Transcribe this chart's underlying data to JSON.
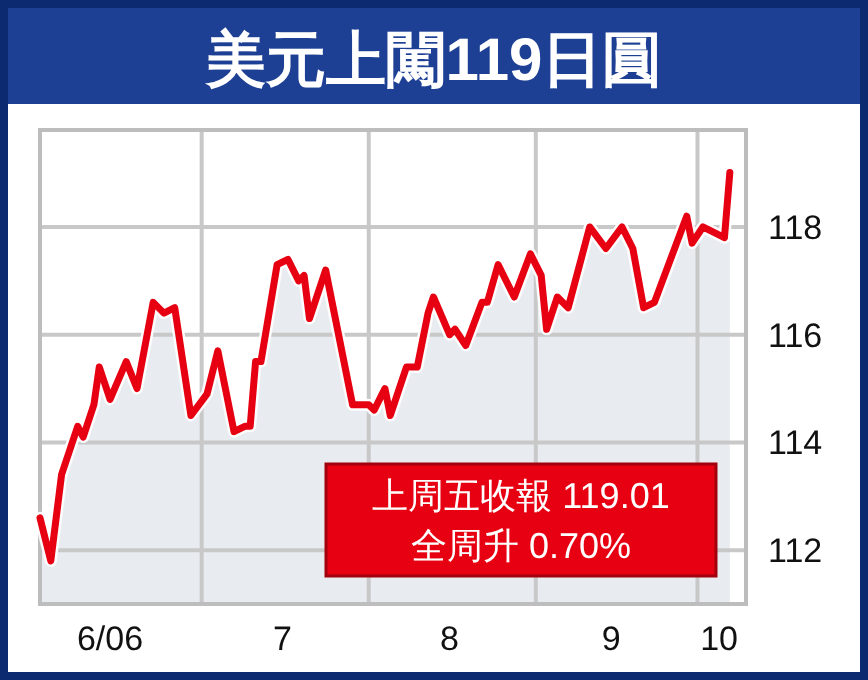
{
  "chart_data": {
    "type": "area",
    "title": "美元上闖119日圓",
    "x": [
      "2006-06-01",
      "2006-06-03",
      "2006-06-05",
      "2006-06-08",
      "2006-06-09",
      "2006-06-11",
      "2006-06-12",
      "2006-06-14",
      "2006-06-17",
      "2006-06-19",
      "2006-06-22",
      "2006-06-24",
      "2006-06-26",
      "2006-06-29",
      "2006-07-02",
      "2006-07-04",
      "2006-07-07",
      "2006-07-09",
      "2006-07-10",
      "2006-07-11",
      "2006-07-12",
      "2006-07-15",
      "2006-07-17",
      "2006-07-19",
      "2006-07-20",
      "2006-07-21",
      "2006-07-24",
      "2006-07-29",
      "2006-08-01",
      "2006-08-02",
      "2006-08-04",
      "2006-08-05",
      "2006-08-07",
      "2006-08-08",
      "2006-08-10",
      "2006-08-12",
      "2006-08-13",
      "2006-08-16",
      "2006-08-17",
      "2006-08-19",
      "2006-08-22",
      "2006-08-23",
      "2006-08-25",
      "2006-08-28",
      "2006-08-31",
      "2006-09-02",
      "2006-09-03",
      "2006-09-05",
      "2006-09-07",
      "2006-09-11",
      "2006-09-14",
      "2006-09-17",
      "2006-09-19",
      "2006-09-21",
      "2006-09-23",
      "2006-09-29",
      "2006-09-30",
      "2006-10-02",
      "2006-10-06",
      "2006-10-07"
    ],
    "values": [
      112.6,
      111.8,
      113.4,
      114.3,
      114.1,
      114.7,
      115.4,
      114.8,
      115.5,
      115.0,
      116.6,
      116.4,
      116.5,
      114.5,
      114.9,
      115.7,
      114.2,
      114.3,
      114.3,
      115.5,
      115.5,
      117.3,
      117.4,
      117.0,
      117.1,
      116.3,
      117.2,
      114.7,
      114.7,
      114.6,
      115.0,
      114.5,
      115.1,
      115.4,
      115.4,
      116.4,
      116.7,
      116.0,
      116.1,
      115.8,
      116.6,
      116.6,
      117.3,
      116.7,
      117.5,
      117.1,
      116.1,
      116.7,
      116.5,
      118.0,
      117.6,
      118.0,
      117.6,
      116.5,
      116.6,
      118.2,
      117.7,
      118.0,
      117.8,
      119.01
    ],
    "color": "#e60012",
    "xlim": [
      "2006-06-01",
      "2006-10-10"
    ],
    "ylim": [
      111,
      119.8
    ],
    "xticks": [
      {
        "value": "2006-06-14",
        "label": "6/06"
      },
      {
        "value": "2006-07-01",
        "label": null
      },
      {
        "value": "2006-07-16",
        "label": "7"
      },
      {
        "value": "2006-08-01",
        "label": null
      },
      {
        "value": "2006-08-16",
        "label": "8"
      },
      {
        "value": "2006-09-01",
        "label": null
      },
      {
        "value": "2006-09-15",
        "label": "9"
      },
      {
        "value": "2006-10-01",
        "label": null
      },
      {
        "value": "2006-10-05",
        "label": "10"
      }
    ],
    "yticks": [
      112,
      114,
      116,
      118
    ],
    "grid": true,
    "annotations": [
      "上周五收報 119.01",
      "全周升 0.70%"
    ]
  }
}
